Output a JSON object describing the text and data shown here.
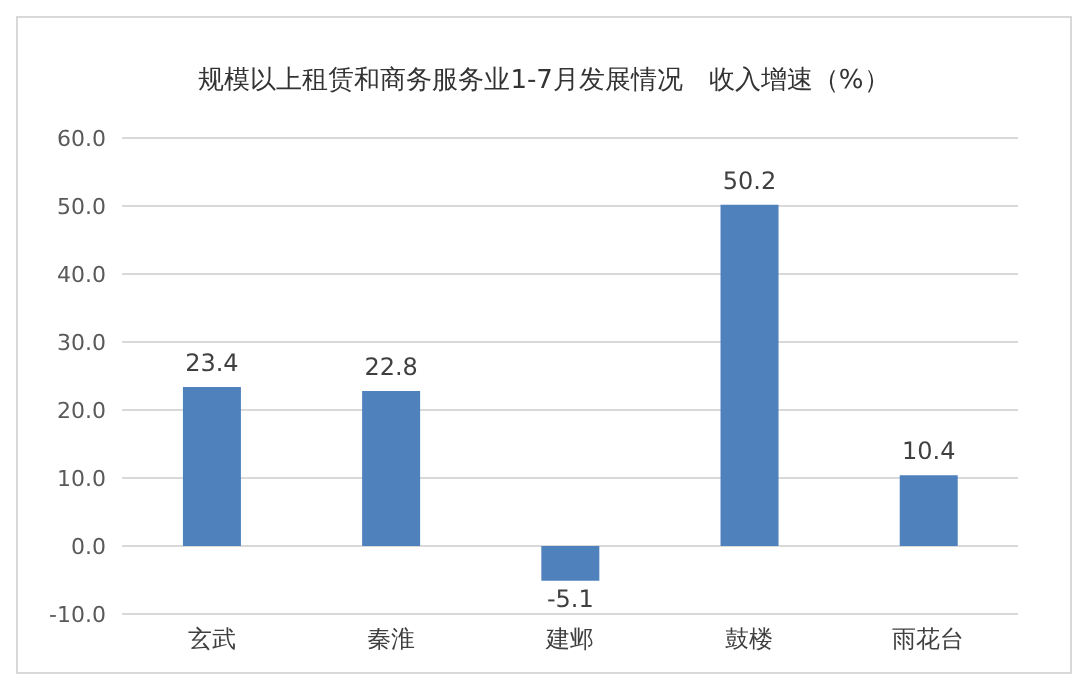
{
  "chart_data": {
    "type": "bar",
    "title": "规模以上租赁和商务服务业1-7月发展情况　收入增速（%）",
    "categories": [
      "玄武",
      "秦淮",
      "建邺",
      "鼓楼",
      "雨花台"
    ],
    "values": [
      23.4,
      22.8,
      -5.1,
      50.2,
      10.4
    ],
    "color": "#4f81bd",
    "ylim": [
      -10,
      60
    ],
    "yticks": [
      {
        "value": -10,
        "label": "-10.0"
      },
      {
        "value": 0,
        "label": "0.0"
      },
      {
        "value": 10,
        "label": "10.0"
      },
      {
        "value": 20,
        "label": "20.0"
      },
      {
        "value": 30,
        "label": "30.0"
      },
      {
        "value": 40,
        "label": "40.0"
      },
      {
        "value": 50,
        "label": "50.0"
      },
      {
        "value": 60,
        "label": "60.0"
      }
    ],
    "grid": "y",
    "data_labels": true,
    "legend": false
  }
}
